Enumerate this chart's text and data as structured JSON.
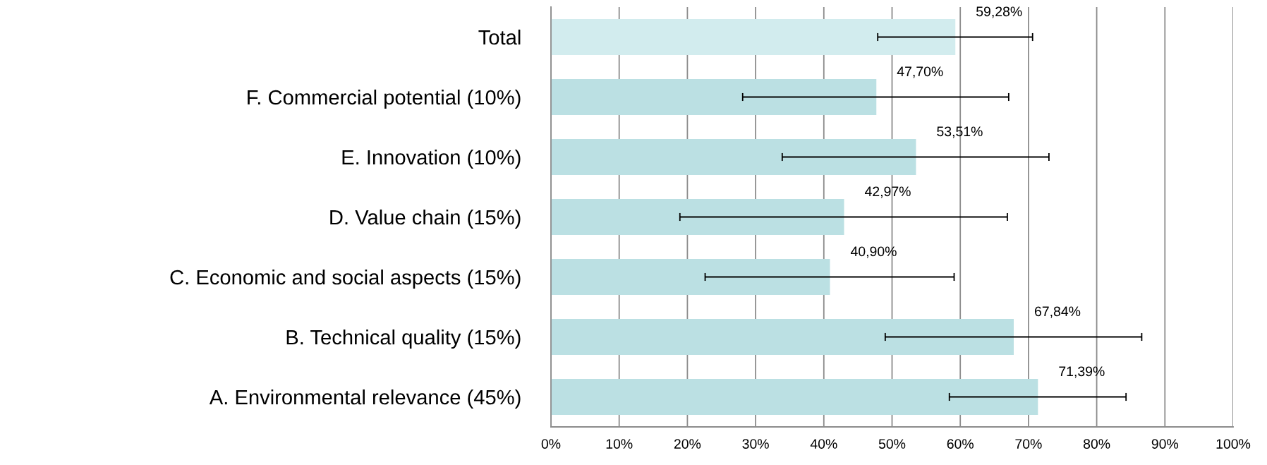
{
  "chart_data": {
    "type": "bar",
    "orientation": "horizontal",
    "categories": [
      "Total",
      "F. Commercial potential (10%)",
      "E. Innovation (10%)",
      "D. Value chain (15%)",
      "C. Economic and social aspects (15%)",
      "B. Technical quality (15%)",
      "A. Environmental relevance (45%)"
    ],
    "values": [
      59.28,
      47.7,
      53.51,
      42.97,
      40.9,
      67.84,
      71.39
    ],
    "value_labels": [
      "59,28%",
      "47,70%",
      "53,51%",
      "42,97%",
      "40,90%",
      "67,84%",
      "71,39%"
    ],
    "errors": [
      [
        47.9,
        70.6
      ],
      [
        28.1,
        67.1
      ],
      [
        33.9,
        73.0
      ],
      [
        18.9,
        66.9
      ],
      [
        22.6,
        59.1
      ],
      [
        49.0,
        86.6
      ],
      [
        58.4,
        84.3
      ]
    ],
    "colors": [
      "#d2ecee",
      "#bbe0e3",
      "#bbe0e3",
      "#bbe0e3",
      "#bbe0e3",
      "#bbe0e3",
      "#bbe0e3"
    ],
    "xlim": [
      0,
      100
    ],
    "xticks": [
      {
        "value": 0,
        "label": "0%"
      },
      {
        "value": 10,
        "label": "10%"
      },
      {
        "value": 20,
        "label": "20%"
      },
      {
        "value": 30,
        "label": "30%"
      },
      {
        "value": 40,
        "label": "40%"
      },
      {
        "value": 50,
        "label": "50%"
      },
      {
        "value": 60,
        "label": "60%"
      },
      {
        "value": 70,
        "label": "70%"
      },
      {
        "value": 80,
        "label": "80%"
      },
      {
        "value": 90,
        "label": "90%"
      },
      {
        "value": 100,
        "label": "100%"
      }
    ],
    "grid": "x",
    "legend": false
  }
}
